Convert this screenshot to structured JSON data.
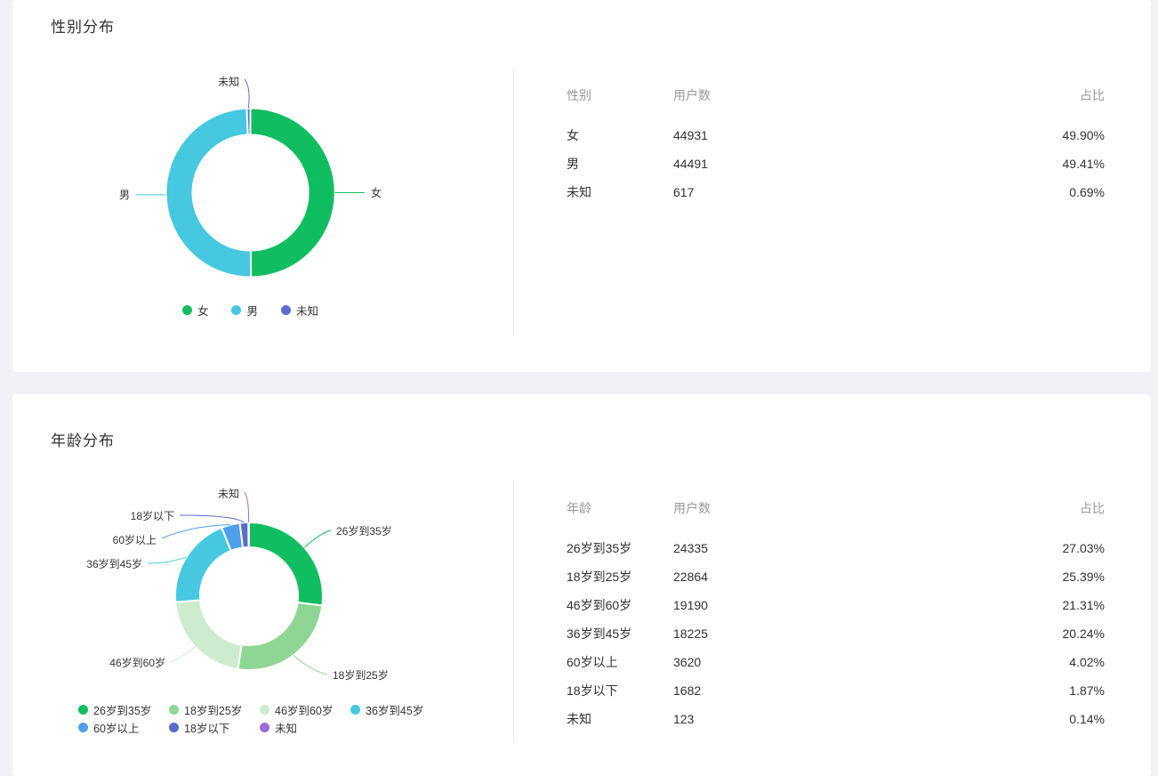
{
  "chart_data": [
    {
      "type": "pie",
      "subtype": "donut",
      "title": "性别分布",
      "labels": [
        "女",
        "男",
        "未知"
      ],
      "values": [
        44931,
        44491,
        617
      ],
      "percentages": [
        "49.90%",
        "49.41%",
        "0.69%"
      ],
      "colors": [
        "#11bd61",
        "#45c8e0",
        "#5b6bcc"
      ],
      "legend_position": "bottom",
      "legend_entries": [
        "女",
        "男",
        "未知"
      ]
    },
    {
      "type": "pie",
      "subtype": "donut",
      "title": "年龄分布",
      "labels": [
        "26岁到35岁",
        "18岁到25岁",
        "46岁到60岁",
        "36岁到45岁",
        "60岁以上",
        "18岁以下",
        "未知"
      ],
      "values": [
        24335,
        22864,
        19190,
        18225,
        3620,
        1682,
        123
      ],
      "percentages": [
        "27.03%",
        "25.39%",
        "21.31%",
        "20.24%",
        "4.02%",
        "1.87%",
        "0.14%"
      ],
      "colors": [
        "#11bd61",
        "#8fd694",
        "#cdeccf",
        "#45c8e0",
        "#4f9fec",
        "#5b6bcc",
        "#9a6ed2"
      ],
      "legend_position": "bottom",
      "legend_entries": [
        "26岁到35岁",
        "18岁到25岁",
        "46岁到60岁",
        "36岁到45岁",
        "60岁以上",
        "18岁以下",
        "未知"
      ]
    }
  ],
  "panels": [
    {
      "title": "性别分布",
      "table": {
        "headers": [
          "性别",
          "用户数",
          "占比"
        ],
        "rows": [
          {
            "label": "女",
            "count": "44931",
            "pct": "49.90%"
          },
          {
            "label": "男",
            "count": "44491",
            "pct": "49.41%"
          },
          {
            "label": "未知",
            "count": "617",
            "pct": "0.69%"
          }
        ]
      }
    },
    {
      "title": "年龄分布",
      "table": {
        "headers": [
          "年龄",
          "用户数",
          "占比"
        ],
        "rows": [
          {
            "label": "26岁到35岁",
            "count": "24335",
            "pct": "27.03%"
          },
          {
            "label": "18岁到25岁",
            "count": "22864",
            "pct": "25.39%"
          },
          {
            "label": "46岁到60岁",
            "count": "19190",
            "pct": "21.31%"
          },
          {
            "label": "36岁到45岁",
            "count": "18225",
            "pct": "20.24%"
          },
          {
            "label": "60岁以上",
            "count": "3620",
            "pct": "4.02%"
          },
          {
            "label": "18岁以下",
            "count": "1682",
            "pct": "1.87%"
          },
          {
            "label": "未知",
            "count": "123",
            "pct": "0.14%"
          }
        ]
      }
    }
  ]
}
